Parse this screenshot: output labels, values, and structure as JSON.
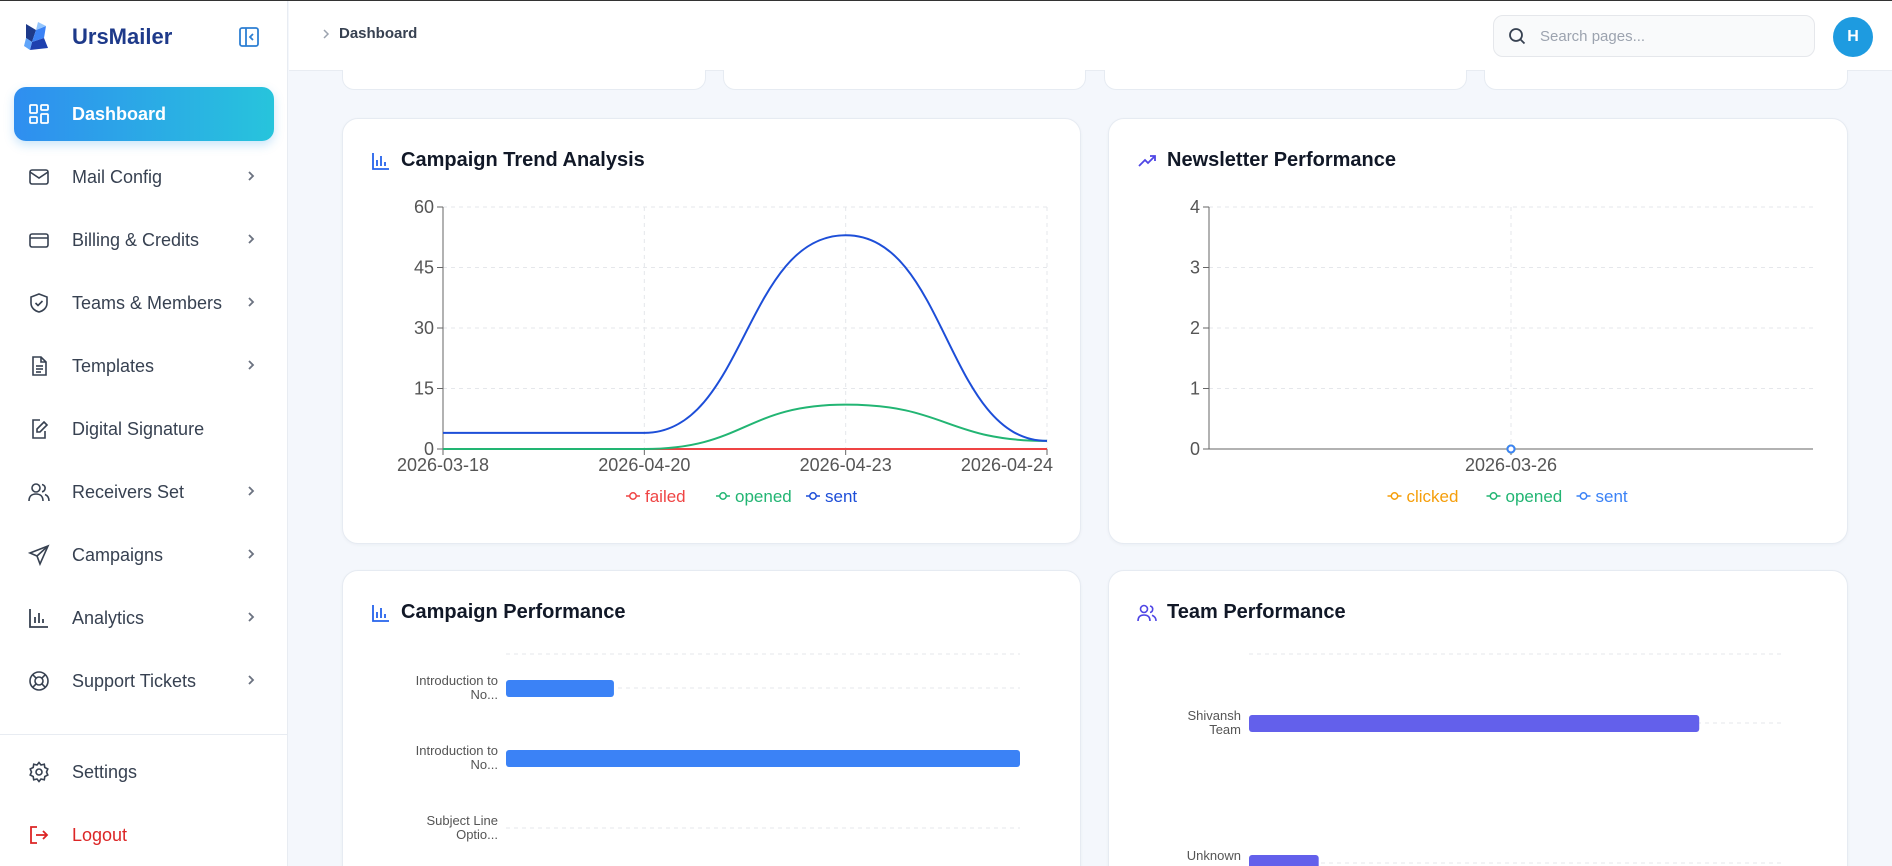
{
  "app": {
    "name": "UrsMailer"
  },
  "colors": {
    "accent": "#2f8ef0",
    "brand": "#1e3a8a",
    "logout": "#dc2626"
  },
  "sidebar": {
    "items": [
      {
        "label": "Dashboard",
        "icon": "dashboard-icon",
        "active": true,
        "chevron": false
      },
      {
        "label": "Mail Config",
        "icon": "mail-icon",
        "chevron": true
      },
      {
        "label": "Billing & Credits",
        "icon": "credit-card-icon",
        "chevron": true
      },
      {
        "label": "Teams & Members",
        "icon": "shield-icon",
        "chevron": true
      },
      {
        "label": "Templates",
        "icon": "file-text-icon",
        "chevron": true
      },
      {
        "label": "Digital Signature",
        "icon": "signature-icon",
        "chevron": false
      },
      {
        "label": "Receivers Set",
        "icon": "users-icon",
        "chevron": true
      },
      {
        "label": "Campaigns",
        "icon": "send-icon",
        "chevron": true
      },
      {
        "label": "Analytics",
        "icon": "bar-chart-icon",
        "chevron": true
      },
      {
        "label": "Support Tickets",
        "icon": "lifebuoy-icon",
        "chevron": true
      }
    ],
    "bottom": [
      {
        "label": "Settings",
        "icon": "gear-icon"
      },
      {
        "label": "Logout",
        "icon": "logout-icon"
      }
    ]
  },
  "header": {
    "breadcrumb": "Dashboard",
    "search_placeholder": "Search pages...",
    "avatar_initial": "H"
  },
  "cards": {
    "campaign_trend": {
      "title": "Campaign Trend Analysis"
    },
    "newsletter": {
      "title": "Newsletter Performance"
    },
    "campaign_performance": {
      "title": "Campaign Performance"
    },
    "team_performance": {
      "title": "Team Performance"
    }
  },
  "chart_data": [
    {
      "type": "line",
      "title": "Campaign Trend Analysis",
      "x": [
        "2026-03-18",
        "2026-04-20",
        "2026-04-23",
        "2026-04-24"
      ],
      "ylim": [
        0,
        60
      ],
      "yticks": [
        0,
        15,
        30,
        45,
        60
      ],
      "grid": true,
      "legend": "bottom",
      "series": [
        {
          "name": "failed",
          "color": "#ef4444",
          "values": [
            0,
            0,
            0,
            0
          ]
        },
        {
          "name": "opened",
          "color": "#22b573",
          "values": [
            0,
            0,
            11,
            2
          ]
        },
        {
          "name": "sent",
          "color": "#1d4ed8",
          "values": [
            4,
            4,
            53,
            2
          ]
        }
      ]
    },
    {
      "type": "line",
      "title": "Newsletter Performance",
      "x": [
        "2026-03-26"
      ],
      "ylim": [
        0,
        4
      ],
      "yticks": [
        0,
        1,
        2,
        3,
        4
      ],
      "grid": true,
      "legend": "bottom",
      "series": [
        {
          "name": "clicked",
          "color": "#f59e0b",
          "values": [
            0
          ]
        },
        {
          "name": "opened",
          "color": "#22b573",
          "values": [
            0
          ]
        },
        {
          "name": "sent",
          "color": "#3b82f6",
          "values": [
            0
          ]
        }
      ]
    },
    {
      "type": "bar",
      "orientation": "horizontal",
      "title": "Campaign Performance",
      "color": "#3b82f6",
      "xlim": [
        0,
        100
      ],
      "categories": [
        {
          "line1": "Introduction to",
          "line2": "No..."
        },
        {
          "line1": "Introduction to",
          "line2": "No..."
        },
        {
          "line1": "Subject Line",
          "line2": "Optio..."
        }
      ],
      "values": [
        21,
        100,
        0
      ]
    },
    {
      "type": "bar",
      "orientation": "horizontal",
      "title": "Team Performance",
      "color": "#6360eb",
      "xlim": [
        0,
        100
      ],
      "categories": [
        {
          "line1": "Shivansh",
          "line2": "Team"
        },
        {
          "line1": "Unknown",
          "line2": ""
        }
      ],
      "values": [
        84,
        13
      ]
    }
  ]
}
